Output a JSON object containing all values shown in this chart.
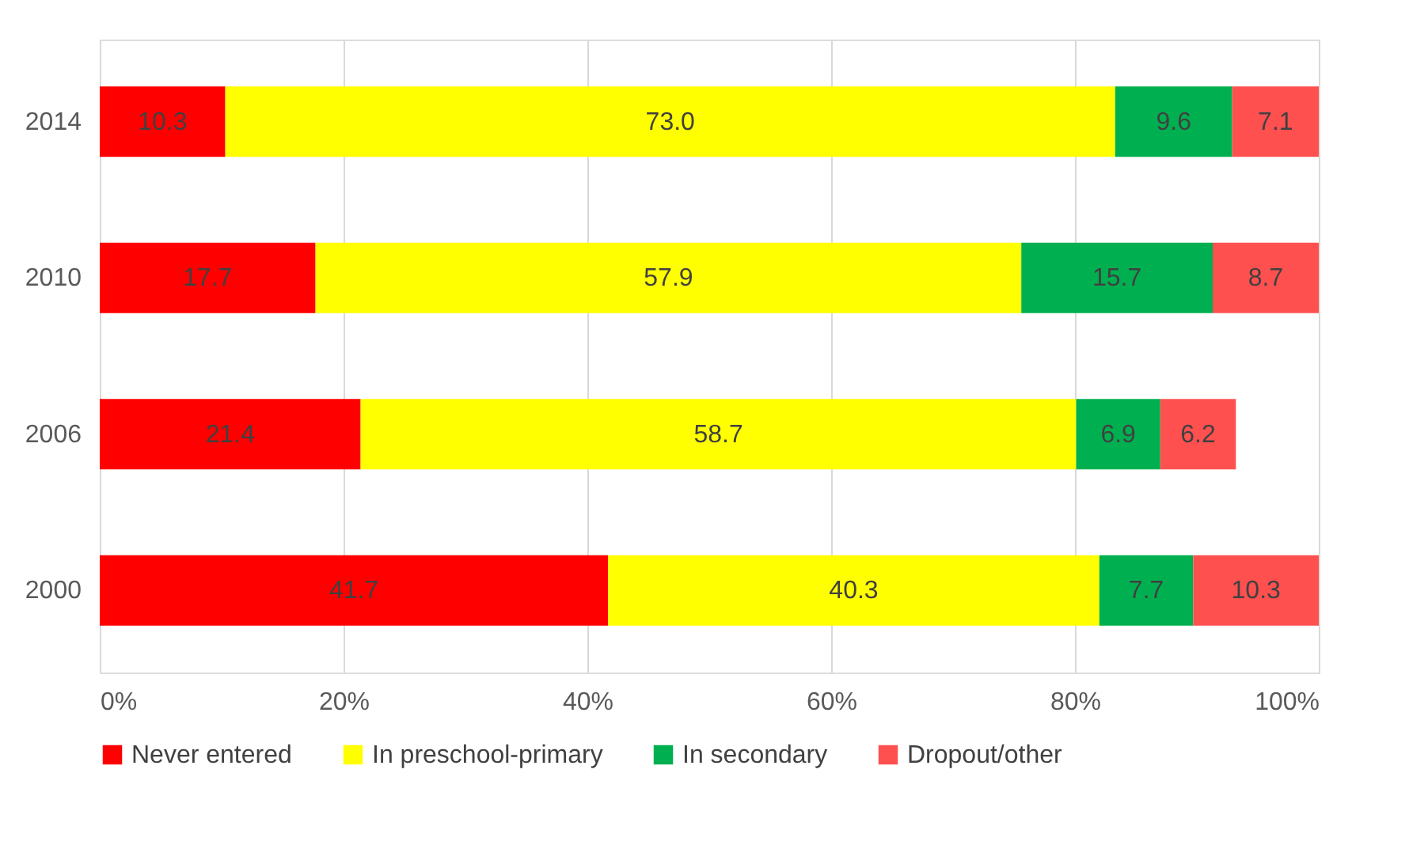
{
  "chart_data": {
    "type": "bar",
    "orientation": "horizontal",
    "stacked": true,
    "categories": [
      "2014",
      "2010",
      "2006",
      "2000"
    ],
    "series": [
      {
        "name": "Never entered",
        "color": "#ff0000",
        "values": [
          10.3,
          17.7,
          21.4,
          41.7
        ],
        "value_labels": [
          "10.3",
          "17.7",
          "21.4",
          "41.7"
        ]
      },
      {
        "name": "In preschool-primary",
        "color": "#ffff00",
        "values": [
          73.0,
          57.9,
          58.7,
          40.3
        ],
        "value_labels": [
          "73.0",
          "57.9",
          "58.7",
          "40.3"
        ]
      },
      {
        "name": "In secondary",
        "color": "#00b050",
        "values": [
          9.6,
          15.7,
          6.9,
          7.7
        ],
        "value_labels": [
          "9.6",
          "15.7",
          "6.9",
          "7.7"
        ]
      },
      {
        "name": "Dropout/other",
        "color": "#ff5050",
        "values": [
          7.1,
          8.7,
          6.2,
          10.3
        ],
        "value_labels": [
          "7.1",
          "8.7",
          "6.2",
          "10.3"
        ]
      }
    ],
    "xlim": [
      0,
      100
    ],
    "xticks": [
      {
        "value": 0,
        "label": "0%"
      },
      {
        "value": 20,
        "label": "20%"
      },
      {
        "value": 40,
        "label": "40%"
      },
      {
        "value": 60,
        "label": "60%"
      },
      {
        "value": 80,
        "label": "80%"
      },
      {
        "value": 100,
        "label": "100%"
      }
    ],
    "grid": "x",
    "legend": "bottom"
  }
}
